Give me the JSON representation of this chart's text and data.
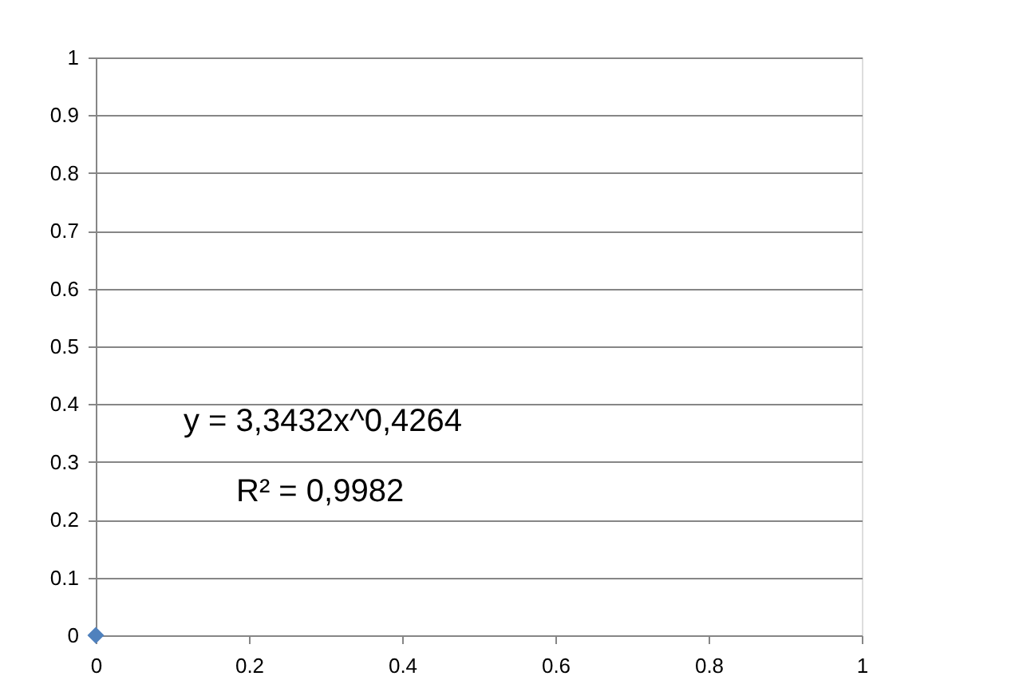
{
  "chart_data": {
    "type": "scatter",
    "x": [
      0
    ],
    "values": [
      0
    ],
    "color": "#4f81bd",
    "marker": "diamond",
    "xlim": [
      0,
      1
    ],
    "xticks": [
      0,
      0.2,
      0.4,
      0.6,
      0.8,
      1
    ],
    "ylim": [
      0,
      1
    ],
    "yticks": [
      0,
      0.1,
      0.2,
      0.3,
      0.4,
      0.5,
      0.6,
      0.7,
      0.8,
      0.9,
      1
    ],
    "grid": "y",
    "annotations": [
      "y = 3,3432x^0,4264",
      "R² = 0,9982"
    ]
  }
}
